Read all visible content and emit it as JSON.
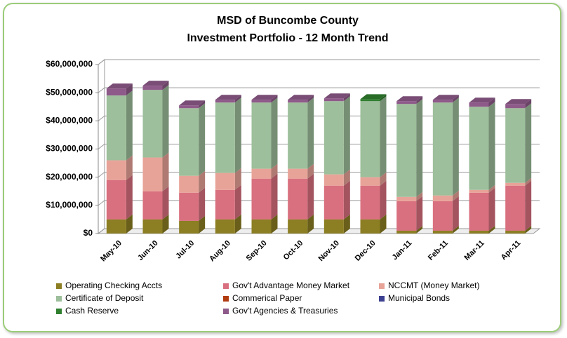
{
  "chart_data": {
    "type": "stacked-bar-3d",
    "title": "MSD of Buncombe County",
    "subtitle": "Investment Portfolio - 12 Month Trend",
    "categories": [
      "May-10",
      "Jun-10",
      "Jul-10",
      "Aug-10",
      "Sep-10",
      "Oct-10",
      "Nov-10",
      "Dec-10",
      "Jan-11",
      "Feb-11",
      "Mar-11",
      "Apr-11"
    ],
    "series": [
      {
        "name": "Operating Checking Accts",
        "color": "#8c7e22",
        "values": [
          5000000,
          5000000,
          4500000,
          5000000,
          5000000,
          5000000,
          5000000,
          5000000,
          1000000,
          1000000,
          1000000,
          1000000
        ]
      },
      {
        "name": "Gov't Advantage Money Market",
        "color": "#d9707f",
        "values": [
          14000000,
          10000000,
          10000000,
          10500000,
          14500000,
          14500000,
          12000000,
          12000000,
          10500000,
          10500000,
          13500000,
          16000000
        ]
      },
      {
        "name": "NCCMT (Money Market)",
        "color": "#e8a398",
        "values": [
          7000000,
          12000000,
          6000000,
          6000000,
          3500000,
          3500000,
          4000000,
          3000000,
          1500000,
          2000000,
          1000000,
          1000000
        ]
      },
      {
        "name": "Certificate of Deposit",
        "color": "#9dbf9b",
        "values": [
          23000000,
          24000000,
          24000000,
          25000000,
          23500000,
          23500000,
          26000000,
          27000000,
          33000000,
          33000000,
          29500000,
          26500000
        ]
      },
      {
        "name": "Commerical Paper",
        "color": "#b23c12",
        "values": [
          0,
          0,
          0,
          0,
          0,
          0,
          0,
          0,
          0,
          0,
          0,
          0
        ]
      },
      {
        "name": "Municipal Bonds",
        "color": "#3c4090",
        "values": [
          0,
          0,
          0,
          0,
          0,
          0,
          0,
          0,
          0,
          0,
          0,
          0
        ]
      },
      {
        "name": "Cash  Reserve",
        "color": "#2f7f2f",
        "values": [
          0,
          0,
          0,
          0,
          0,
          0,
          0,
          700000,
          0,
          0,
          0,
          0
        ]
      },
      {
        "name": "Gov't Agencies & Treasuries",
        "color": "#8e5a8a",
        "values": [
          2500000,
          1500000,
          1000000,
          1000000,
          1000000,
          1000000,
          1000000,
          0,
          1000000,
          1000000,
          1500000,
          1500000
        ]
      }
    ],
    "ylim": [
      0,
      60000000
    ],
    "yticks": [
      {
        "value": 0,
        "label": "$0"
      },
      {
        "value": 10000000,
        "label": "$10,000,000"
      },
      {
        "value": 20000000,
        "label": "$20,000,000"
      },
      {
        "value": 30000000,
        "label": "$30,000,000"
      },
      {
        "value": 40000000,
        "label": "$40,000,000"
      },
      {
        "value": 50000000,
        "label": "$50,000,000"
      },
      {
        "value": 60000000,
        "label": "$60,000,000"
      }
    ],
    "grid": true
  }
}
